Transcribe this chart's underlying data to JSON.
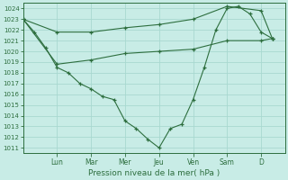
{
  "title": "Pression niveau de la mer( hPa )",
  "bg_color": "#c8ece6",
  "grid_color": "#a8d8d0",
  "line_color": "#2d6e3e",
  "day_labels": [
    "Lun",
    "Mar",
    "Mer",
    "Jeu",
    "Ven",
    "Sam",
    "D"
  ],
  "day_tick_positions": [
    1.0,
    2.0,
    3.0,
    4.0,
    5.0,
    6.0,
    7.0
  ],
  "xlim": [
    0.0,
    7.7
  ],
  "ylim": [
    1010.5,
    1024.5
  ],
  "yticks": [
    1011,
    1012,
    1013,
    1014,
    1015,
    1016,
    1017,
    1018,
    1019,
    1020,
    1021,
    1022,
    1023,
    1024
  ],
  "vline_positions": [
    1.0,
    2.0,
    3.0,
    4.0,
    5.0,
    6.0,
    7.0
  ],
  "series_main": {
    "x": [
      0.0,
      0.33,
      0.67,
      1.0,
      1.33,
      1.67,
      2.0,
      2.33,
      2.67,
      3.0,
      3.33,
      3.67,
      4.0,
      4.33,
      4.67,
      5.0,
      5.33,
      5.67,
      6.0,
      6.33,
      6.67,
      7.0,
      7.33
    ],
    "y": [
      1023.0,
      1021.8,
      1020.3,
      1018.5,
      1018.0,
      1017.0,
      1016.5,
      1015.8,
      1015.5,
      1013.5,
      1012.8,
      1011.8,
      1011.0,
      1012.8,
      1013.2,
      1015.5,
      1018.5,
      1022.0,
      1024.0,
      1024.2,
      1023.5,
      1021.8,
      1021.2
    ]
  },
  "series_upper": {
    "x": [
      0.0,
      1.0,
      2.0,
      3.0,
      4.0,
      5.0,
      6.0,
      7.0,
      7.33
    ],
    "y": [
      1023.0,
      1021.8,
      1021.8,
      1022.2,
      1022.5,
      1023.0,
      1024.2,
      1023.8,
      1021.2
    ]
  },
  "series_lower": {
    "x": [
      0.0,
      1.0,
      2.0,
      3.0,
      4.0,
      5.0,
      6.0,
      7.0,
      7.33
    ],
    "y": [
      1023.0,
      1018.8,
      1019.2,
      1019.8,
      1020.0,
      1020.2,
      1021.0,
      1021.0,
      1021.2
    ]
  }
}
